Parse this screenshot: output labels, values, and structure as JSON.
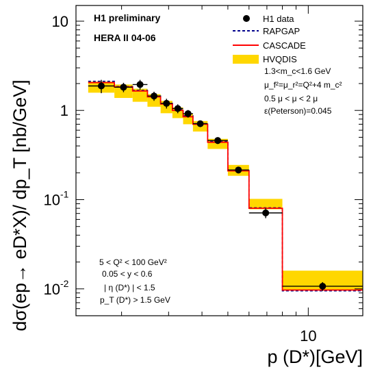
{
  "chart_data": {
    "type": "histogram-with-points",
    "ylabel": "dσ(ep→ eD*X)/ dp_T [nb/GeV]",
    "xlabel": "p (D*)[GeV]",
    "x_scale": "log",
    "y_scale": "log",
    "xlim": [
      1.35,
      16.0
    ],
    "ylim": [
      0.005,
      15
    ],
    "x_tick_labels": [
      {
        "value": 10,
        "label": "10"
      }
    ],
    "y_tick_labels": [
      {
        "value": 10,
        "label": "10"
      },
      {
        "value": 1,
        "label": "1"
      },
      {
        "value": 0.1,
        "label": "10",
        "exp": "-1"
      },
      {
        "value": 0.01,
        "label": "10",
        "exp": "-2"
      }
    ],
    "header": [
      "H1 preliminary",
      "HERA II 04-06"
    ],
    "legend": [
      {
        "name": "H1 data",
        "marker": "circle",
        "color": "#000000"
      },
      {
        "name": "RAPGAP",
        "marker": "dashed-line",
        "color": "#00008B"
      },
      {
        "name": "CASCADE",
        "marker": "line",
        "color": "#FF0000"
      },
      {
        "name": "HVQDIS",
        "marker": "band",
        "color": "#FFD700"
      }
    ],
    "hvqdis_params": [
      "1.3<m_c<1.6 GeV",
      "μ_f²=μ_r²=Q²+4 m_c²",
      "0.5 μ < μ < 2 μ",
      "ε(Peterson)=0.045"
    ],
    "cuts": [
      "5 < Q² < 100 GeV²",
      "0.05 < y < 0.6",
      "| η (D*) | < 1.5",
      "p_T (D*) > 1.5 GeV"
    ],
    "bins": [
      {
        "lo": 1.5,
        "hi": 1.88,
        "data": 1.88,
        "data_err": 0.32,
        "hvq_lo": 1.58,
        "hvq_hi": 2.1,
        "cascade": 2.05,
        "rapgap": 2.12
      },
      {
        "lo": 1.88,
        "hi": 2.2,
        "data": 1.82,
        "data_err": 0.22,
        "hvq_lo": 1.38,
        "hvq_hi": 1.95,
        "cascade": 1.83,
        "rapgap": 1.85
      },
      {
        "lo": 2.2,
        "hi": 2.5,
        "data": 1.95,
        "data_err": 0.25,
        "hvq_lo": 1.25,
        "hvq_hi": 1.75,
        "cascade": 1.65,
        "rapgap": 1.68
      },
      {
        "lo": 2.5,
        "hi": 2.8,
        "data": 1.45,
        "data_err": 0.17,
        "hvq_lo": 1.1,
        "hvq_hi": 1.52,
        "cascade": 1.42,
        "rapgap": 1.45
      },
      {
        "lo": 2.8,
        "hi": 3.1,
        "data": 1.2,
        "data_err": 0.15,
        "hvq_lo": 0.93,
        "hvq_hi": 1.28,
        "cascade": 1.18,
        "rapgap": 1.2
      },
      {
        "lo": 3.1,
        "hi": 3.4,
        "data": 1.05,
        "data_err": 0.12,
        "hvq_lo": 0.82,
        "hvq_hi": 1.08,
        "cascade": 1.0,
        "rapgap": 1.02
      },
      {
        "lo": 3.4,
        "hi": 3.7,
        "data": 0.92,
        "data_err": 0.09,
        "hvq_lo": 0.7,
        "hvq_hi": 0.92,
        "cascade": 0.85,
        "rapgap": 0.87
      },
      {
        "lo": 3.7,
        "hi": 4.2,
        "data": 0.71,
        "data_err": 0.06,
        "hvq_lo": 0.58,
        "hvq_hi": 0.76,
        "cascade": 0.7,
        "rapgap": 0.71
      },
      {
        "lo": 4.2,
        "hi": 5.0,
        "data": 0.46,
        "data_err": 0.04,
        "hvq_lo": 0.37,
        "hvq_hi": 0.48,
        "cascade": 0.44,
        "rapgap": 0.45
      },
      {
        "lo": 5.0,
        "hi": 6.0,
        "data": 0.215,
        "data_err": 0.018,
        "hvq_lo": 0.185,
        "hvq_hi": 0.245,
        "cascade": 0.21,
        "rapgap": 0.212
      },
      {
        "lo": 6.0,
        "hi": 8.0,
        "data": 0.071,
        "data_err": 0.009,
        "hvq_lo": 0.078,
        "hvq_hi": 0.102,
        "cascade": 0.08,
        "rapgap": 0.081
      },
      {
        "lo": 8.0,
        "hi": 16.0,
        "data": 0.0107,
        "data_err": 0.0012,
        "hvq_lo": 0.0098,
        "hvq_hi": 0.016,
        "cascade": 0.0097,
        "rapgap": 0.0095
      }
    ]
  }
}
